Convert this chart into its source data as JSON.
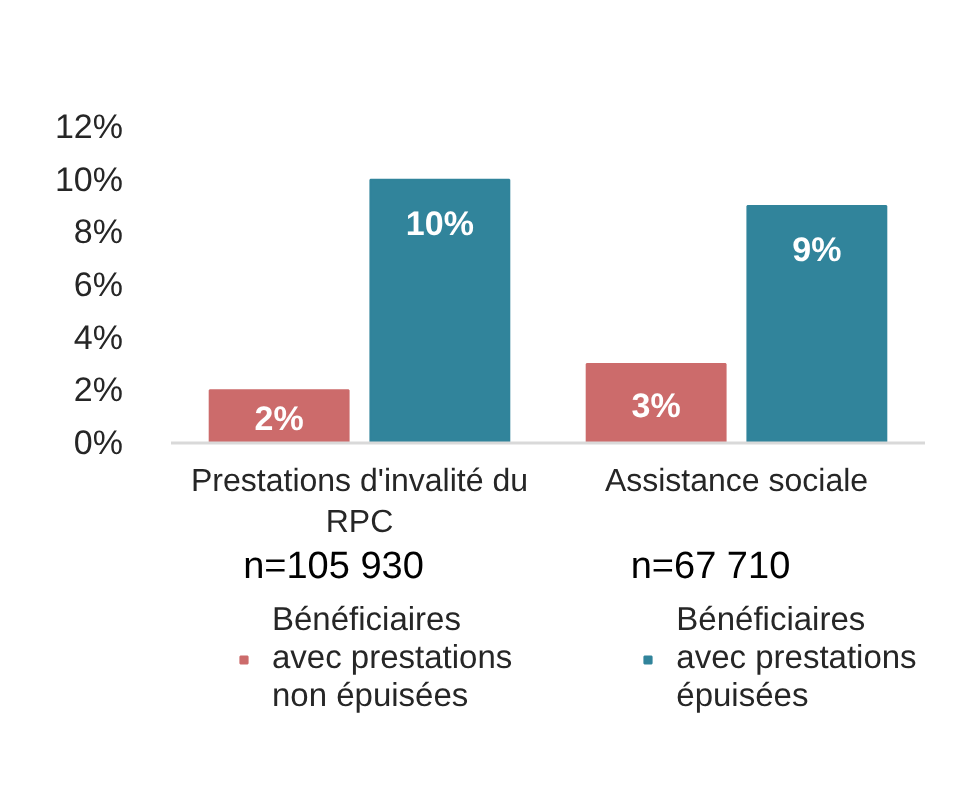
{
  "chart_data": {
    "type": "bar",
    "categories": [
      "Prestations d'invalité du RPC",
      "Assistance sociale"
    ],
    "series": [
      {
        "name": "Bénéficiaires avec prestations non épuisées",
        "color": "#cc6b6b",
        "values": [
          2,
          3
        ],
        "value_labels": [
          "2%",
          "3%"
        ]
      },
      {
        "name": "Bénéficiaires avec prestations épuisées",
        "color": "#31849b",
        "values": [
          10,
          9
        ],
        "value_labels": [
          "10%",
          "9%"
        ]
      }
    ],
    "ylim": [
      0,
      12
    ],
    "yticks": [
      {
        "value": 0,
        "label": "0%"
      },
      {
        "value": 2,
        "label": "2%"
      },
      {
        "value": 4,
        "label": "4%"
      },
      {
        "value": 6,
        "label": "6%"
      },
      {
        "value": 8,
        "label": "8%"
      },
      {
        "value": 10,
        "label": "10%"
      },
      {
        "value": 12,
        "label": "12%"
      }
    ],
    "legend": "bottom",
    "annotations": [
      "n=105 930",
      "n=67 710"
    ]
  }
}
